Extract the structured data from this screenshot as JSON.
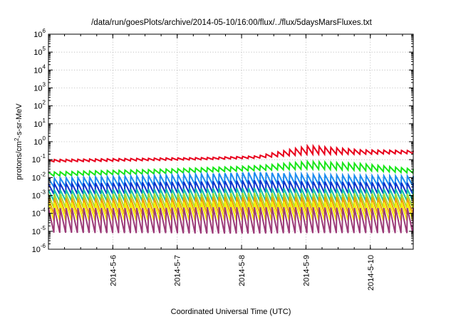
{
  "chart_data": {
    "type": "line",
    "title": "/data/run/goesPlots/archive/2014-05-10/16:00/flux/../flux/5daysMarsFluxes.txt",
    "xlabel": "Coordinated Universal Time (UTC)",
    "ylabel": "protons/cm2-s-sr-MeV",
    "y_scale": "log",
    "ylim": [
      1e-06,
      1000000.0
    ],
    "y_ticks": [
      {
        "base": "10",
        "exp": "-6"
      },
      {
        "base": "10",
        "exp": "-5"
      },
      {
        "base": "10",
        "exp": "-4"
      },
      {
        "base": "10",
        "exp": "-3"
      },
      {
        "base": "10",
        "exp": "-2"
      },
      {
        "base": "10",
        "exp": "-1"
      },
      {
        "base": "10",
        "exp": "0"
      },
      {
        "base": "10",
        "exp": "1"
      },
      {
        "base": "10",
        "exp": "2"
      },
      {
        "base": "10",
        "exp": "3"
      },
      {
        "base": "10",
        "exp": "4"
      },
      {
        "base": "10",
        "exp": "5"
      },
      {
        "base": "10",
        "exp": "6"
      }
    ],
    "xlim": [
      "2014-05-05 00:00",
      "2014-05-10 16:00"
    ],
    "x_ticks": [
      "2014-5-6",
      "2014-5-7",
      "2014-5-8",
      "2014-5-9",
      "2014-5-10"
    ],
    "grid": true,
    "legend": "none",
    "series": [
      {
        "color": "#e8001c",
        "peak": [
          0.1,
          0.11,
          0.12,
          0.13,
          0.16,
          0.6,
          0.35,
          0.32
        ],
        "trough": [
          0.075,
          0.08,
          0.09,
          0.1,
          0.12,
          0.2,
          0.2,
          0.22
        ]
      },
      {
        "color": "#19e619",
        "peak": [
          0.02,
          0.024,
          0.028,
          0.035,
          0.045,
          0.08,
          0.06,
          0.03
        ],
        "trough": [
          0.012,
          0.014,
          0.016,
          0.02,
          0.025,
          0.03,
          0.025,
          0.018
        ]
      },
      {
        "color": "#1c8cf0",
        "peak": [
          0.009,
          0.011,
          0.013,
          0.016,
          0.02,
          0.015,
          0.013,
          0.012
        ],
        "trough": [
          0.003,
          0.0032,
          0.0035,
          0.004,
          0.0045,
          0.004,
          0.0038,
          0.0035
        ]
      },
      {
        "color": "#0d33cc",
        "peak": [
          0.0045,
          0.005,
          0.0055,
          0.006,
          0.007,
          0.006,
          0.0055,
          0.005
        ],
        "trough": [
          0.0012,
          0.0012,
          0.0013,
          0.0014,
          0.0015,
          0.0014,
          0.0013,
          0.0012
        ]
      },
      {
        "color": "#15c2a6",
        "peak": [
          0.002,
          0.0022,
          0.0023,
          0.0025,
          0.0026,
          0.0025,
          0.0024,
          0.0023
        ],
        "trough": [
          0.0005,
          0.0005,
          0.0005,
          0.0005,
          0.0005,
          0.0005,
          0.0005,
          0.0005
        ]
      },
      {
        "color": "#a6d931",
        "peak": [
          0.0012,
          0.0012,
          0.0013,
          0.0013,
          0.0014,
          0.0013,
          0.0013,
          0.0012
        ],
        "trough": [
          0.0002,
          0.0002,
          0.0002,
          0.0002,
          0.0002,
          0.0002,
          0.0002,
          0.0002
        ]
      },
      {
        "color": "#f0a000",
        "peak": [
          0.0007,
          0.0007,
          0.0007,
          0.0008,
          0.0008,
          0.0008,
          0.0008,
          0.0007
        ],
        "trough": [
          9e-05,
          9e-05,
          9e-05,
          0.0001,
          0.0001,
          0.0001,
          0.0001,
          9e-05
        ]
      },
      {
        "color": "#f5f000",
        "peak": [
          0.0004,
          0.0004,
          0.0004,
          0.00045,
          0.00045,
          0.00045,
          0.0004,
          0.0004
        ],
        "trough": [
          4e-05,
          4e-05,
          4e-05,
          4e-05,
          4e-05,
          4e-05,
          4e-05,
          4e-05
        ]
      },
      {
        "color": "#9c3a78",
        "peak": [
          0.0002,
          0.0002,
          0.0002,
          0.00022,
          0.00022,
          0.00022,
          0.0002,
          0.0002
        ],
        "trough": [
          8.5e-06,
          8e-06,
          8e-06,
          7.5e-06,
          7.5e-06,
          8e-06,
          8e-06,
          8e-06
        ]
      }
    ]
  }
}
